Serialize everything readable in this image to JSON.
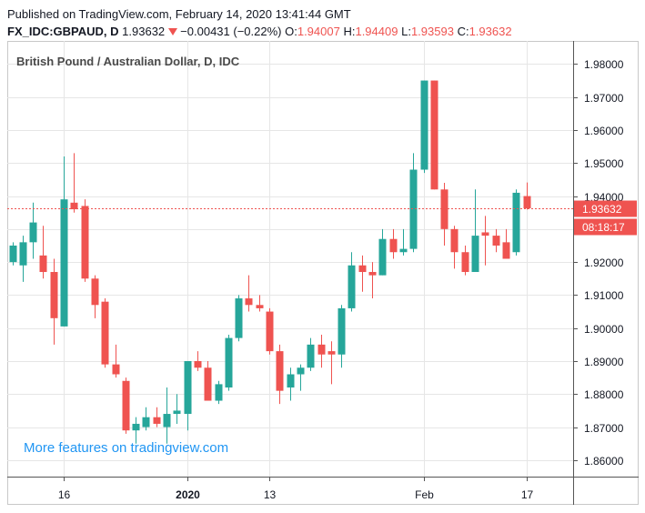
{
  "header": {
    "published": "Published on TradingView.com, February 14, 2020 13:41:44 GMT",
    "symbol": "FX_IDC:GBPAUD, D",
    "last": "1.93632",
    "change": "−0.00431 (−0.22%)",
    "o_label": "O:",
    "o_value": "1.94007",
    "h_label": "H:",
    "h_value": "1.94409",
    "l_label": "L:",
    "l_value": "1.93593",
    "c_label": "C:",
    "c_value": "1.93632"
  },
  "colors": {
    "up": "#26a69a",
    "down": "#ef5350",
    "grid": "#e6e6e6",
    "axis": "#555555",
    "watermark": "#2196f3"
  },
  "chart_data": {
    "type": "candlestick",
    "title": "British Pound / Australian Dollar, D, IDC",
    "ylim": [
      1.855,
      1.987
    ],
    "y_ticks": [
      "1.98000",
      "1.97000",
      "1.96000",
      "1.95000",
      "1.94000",
      "1.93000",
      "1.92000",
      "1.91000",
      "1.90000",
      "1.89000",
      "1.88000",
      "1.87000",
      "1.86000"
    ],
    "x_ticks": [
      {
        "label": "16",
        "index": 5
      },
      {
        "label": "2020",
        "index": 17
      },
      {
        "label": "13",
        "index": 25
      },
      {
        "label": "Feb",
        "index": 40
      },
      {
        "label": "17",
        "index": 50
      }
    ],
    "last_price": {
      "label": "1.93632",
      "value": 1.93632,
      "countdown": "08:18:17"
    },
    "watermark": "More features on tradingview.com",
    "candles": [
      {
        "o": 1.92,
        "h": 1.926,
        "l": 1.919,
        "c": 1.925
      },
      {
        "o": 1.919,
        "h": 1.928,
        "l": 1.914,
        "c": 1.926
      },
      {
        "o": 1.926,
        "h": 1.938,
        "l": 1.921,
        "c": 1.932
      },
      {
        "o": 1.922,
        "h": 1.931,
        "l": 1.915,
        "c": 1.917
      },
      {
        "o": 1.917,
        "h": 1.921,
        "l": 1.895,
        "c": 1.903
      },
      {
        "o": 1.9005,
        "h": 1.952,
        "l": 1.9005,
        "c": 1.939
      },
      {
        "o": 1.938,
        "h": 1.953,
        "l": 1.935,
        "c": 1.936
      },
      {
        "o": 1.937,
        "h": 1.939,
        "l": 1.914,
        "c": 1.915
      },
      {
        "o": 1.915,
        "h": 1.916,
        "l": 1.903,
        "c": 1.907
      },
      {
        "o": 1.908,
        "h": 1.909,
        "l": 1.888,
        "c": 1.889
      },
      {
        "o": 1.889,
        "h": 1.895,
        "l": 1.885,
        "c": 1.886
      },
      {
        "o": 1.884,
        "h": 1.885,
        "l": 1.868,
        "c": 1.869
      },
      {
        "o": 1.869,
        "h": 1.873,
        "l": 1.865,
        "c": 1.871
      },
      {
        "o": 1.87,
        "h": 1.876,
        "l": 1.869,
        "c": 1.873
      },
      {
        "o": 1.873,
        "h": 1.876,
        "l": 1.87,
        "c": 1.871
      },
      {
        "o": 1.87,
        "h": 1.882,
        "l": 1.865,
        "c": 1.874
      },
      {
        "o": 1.874,
        "h": 1.88,
        "l": 1.871,
        "c": 1.875
      },
      {
        "o": 1.874,
        "h": 1.89,
        "l": 1.869,
        "c": 1.89
      },
      {
        "o": 1.89,
        "h": 1.893,
        "l": 1.887,
        "c": 1.888
      },
      {
        "o": 1.888,
        "h": 1.89,
        "l": 1.878,
        "c": 1.878
      },
      {
        "o": 1.878,
        "h": 1.884,
        "l": 1.877,
        "c": 1.883
      },
      {
        "o": 1.882,
        "h": 1.898,
        "l": 1.881,
        "c": 1.897
      },
      {
        "o": 1.897,
        "h": 1.91,
        "l": 1.896,
        "c": 1.909
      },
      {
        "o": 1.909,
        "h": 1.916,
        "l": 1.905,
        "c": 1.907
      },
      {
        "o": 1.907,
        "h": 1.91,
        "l": 1.905,
        "c": 1.906
      },
      {
        "o": 1.905,
        "h": 1.906,
        "l": 1.892,
        "c": 1.893
      },
      {
        "o": 1.893,
        "h": 1.895,
        "l": 1.877,
        "c": 1.881
      },
      {
        "o": 1.882,
        "h": 1.888,
        "l": 1.878,
        "c": 1.886
      },
      {
        "o": 1.886,
        "h": 1.889,
        "l": 1.881,
        "c": 1.888
      },
      {
        "o": 1.888,
        "h": 1.897,
        "l": 1.887,
        "c": 1.895
      },
      {
        "o": 1.895,
        "h": 1.898,
        "l": 1.888,
        "c": 1.892
      },
      {
        "o": 1.893,
        "h": 1.896,
        "l": 1.883,
        "c": 1.892
      },
      {
        "o": 1.892,
        "h": 1.907,
        "l": 1.888,
        "c": 1.906
      },
      {
        "o": 1.906,
        "h": 1.923,
        "l": 1.905,
        "c": 1.919
      },
      {
        "o": 1.919,
        "h": 1.922,
        "l": 1.911,
        "c": 1.917
      },
      {
        "o": 1.917,
        "h": 1.92,
        "l": 1.909,
        "c": 1.916
      },
      {
        "o": 1.916,
        "h": 1.93,
        "l": 1.916,
        "c": 1.927
      },
      {
        "o": 1.927,
        "h": 1.93,
        "l": 1.921,
        "c": 1.923
      },
      {
        "o": 1.923,
        "h": 1.93,
        "l": 1.922,
        "c": 1.924
      },
      {
        "o": 1.924,
        "h": 1.953,
        "l": 1.923,
        "c": 1.948
      },
      {
        "o": 1.948,
        "h": 1.975,
        "l": 1.947,
        "c": 1.975
      },
      {
        "o": 1.975,
        "h": 1.975,
        "l": 1.942,
        "c": 1.942
      },
      {
        "o": 1.942,
        "h": 1.944,
        "l": 1.925,
        "c": 1.93
      },
      {
        "o": 1.93,
        "h": 1.931,
        "l": 1.918,
        "c": 1.923
      },
      {
        "o": 1.923,
        "h": 1.925,
        "l": 1.916,
        "c": 1.917
      },
      {
        "o": 1.917,
        "h": 1.942,
        "l": 1.917,
        "c": 1.928
      },
      {
        "o": 1.929,
        "h": 1.934,
        "l": 1.919,
        "c": 1.928
      },
      {
        "o": 1.928,
        "h": 1.93,
        "l": 1.923,
        "c": 1.925
      },
      {
        "o": 1.926,
        "h": 1.93,
        "l": 1.921,
        "c": 1.921
      },
      {
        "o": 1.923,
        "h": 1.942,
        "l": 1.922,
        "c": 1.941
      },
      {
        "o": 1.94,
        "h": 1.9441,
        "l": 1.9359,
        "c": 1.9363
      }
    ]
  }
}
